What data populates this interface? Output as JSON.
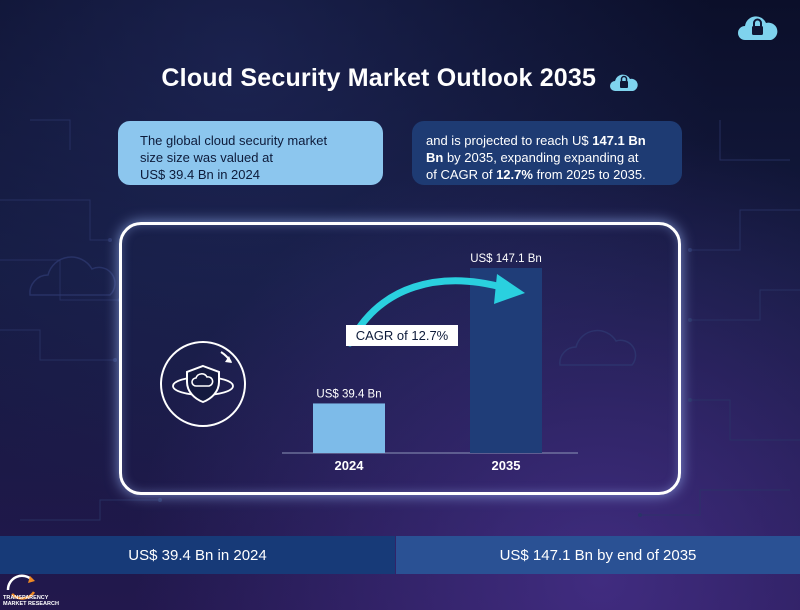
{
  "title": "Cloud Security Market Outlook 2035",
  "info_left": {
    "line1": "The global cloud security market",
    "line2": "size size was valued at",
    "line3": "US$ 39.4 Bn in 2024"
  },
  "info_right": {
    "line1_pre": "and is projected to reach U$ ",
    "line1_bold": "147.1 Bn",
    "line2_bold": "Bn",
    "line2_rest": " by 2035, expanding expanding at",
    "line3_pre": "of CAGR of ",
    "line3_bold": "12.7%",
    "line3_rest": " from 2025 to 2035."
  },
  "chart_data": {
    "type": "bar",
    "categories": [
      "2024",
      "2035"
    ],
    "values": [
      39.4,
      147.1
    ],
    "value_labels": [
      "US$ 39.4 Bn",
      "US$ 147.1 Bn"
    ],
    "bar_colors": [
      "#7dbbe9",
      "#1f3d78"
    ],
    "annotation": "CAGR of 12.7%",
    "arrow_color": "#2ad0df",
    "title": "",
    "xlabel": "",
    "ylabel": ""
  },
  "bottom_band": {
    "left": "US$ 39.4 Bn in 2024",
    "right": "US$ 147.1 Bn by end of 2035"
  },
  "brand": {
    "line1": "TRANSPARENCY",
    "line2": "MARKET RESEARCH"
  },
  "colors": {
    "background": "#141a3f",
    "accent": "#2ad0df",
    "cloud_icon": "#7fd3ee"
  }
}
